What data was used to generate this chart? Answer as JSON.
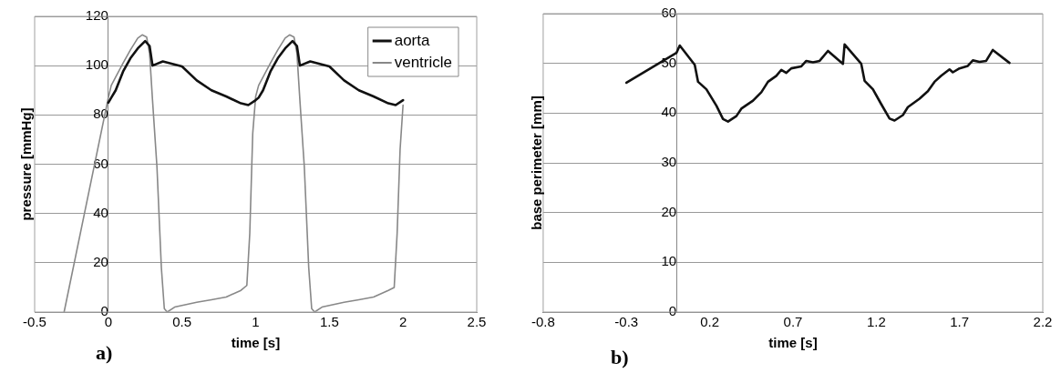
{
  "chart_data": [
    {
      "type": "line",
      "xlabel": "time [s]",
      "ylabel": "pressure [mmHg]",
      "annotations": [
        "a)"
      ],
      "xlim": [
        -0.5,
        2.5
      ],
      "xticks": [
        -0.5,
        0,
        0.5,
        1,
        1.5,
        2,
        2.5
      ],
      "ylim": [
        0,
        120
      ],
      "yticks": [
        0,
        20,
        40,
        60,
        80,
        100,
        120
      ],
      "grid": "y",
      "legend": "top right",
      "marker": "none",
      "line_style": "solid",
      "series": [
        {
          "name": "aorta",
          "color": "#111111",
          "x": [
            0,
            0.02,
            0.05,
            0.1,
            0.15,
            0.2,
            0.25,
            0.28,
            0.3,
            0.37,
            0.5,
            0.6,
            0.7,
            0.8,
            0.9,
            0.95,
            1.0,
            1.02,
            1.05,
            1.1,
            1.15,
            1.2,
            1.25,
            1.28,
            1.3,
            1.37,
            1.5,
            1.6,
            1.7,
            1.8,
            1.9,
            1.95,
            2.0
          ],
          "values": [
            85,
            87,
            90,
            97.6,
            103,
            107,
            110,
            108,
            100,
            101.7,
            99.7,
            94,
            90,
            87.5,
            84.7,
            84,
            86,
            87,
            90,
            97.6,
            103,
            107,
            110,
            108,
            100,
            101.7,
            99.7,
            94,
            90,
            87.5,
            84.7,
            84,
            86
          ]
        },
        {
          "name": "ventricle",
          "color": "#888888",
          "x": [
            -0.3,
            0,
            0.02,
            0.1,
            0.15,
            0.2,
            0.23,
            0.26,
            0.28,
            0.3,
            0.33,
            0.36,
            0.38,
            0.4,
            0.45,
            0.5,
            0.6,
            0.7,
            0.8,
            0.9,
            0.94,
            0.96,
            0.98,
            1.0,
            1.02,
            1.1,
            1.15,
            1.2,
            1.23,
            1.26,
            1.28,
            1.3,
            1.33,
            1.36,
            1.38,
            1.4,
            1.45,
            1.5,
            1.6,
            1.7,
            1.8,
            1.9,
            1.94,
            1.96,
            1.98,
            2.0
          ],
          "values": [
            0,
            87,
            92,
            101,
            106.4,
            111.2,
            112.5,
            111.6,
            105,
            86,
            59,
            18,
            1.4,
            0,
            2,
            2.7,
            4,
            5,
            6.1,
            8.8,
            10.8,
            32,
            72.5,
            87.5,
            92,
            101,
            106.4,
            111.2,
            112.5,
            111.6,
            105,
            86,
            59,
            18,
            1.4,
            0,
            2,
            2.7,
            4,
            5,
            6.1,
            8.8,
            10,
            32,
            66,
            84
          ]
        }
      ]
    },
    {
      "type": "line",
      "xlabel": "time [s]",
      "ylabel": "base perimeter [mm]",
      "annotations": [
        "b)"
      ],
      "xlim": [
        -0.8,
        2.2
      ],
      "xticks": [
        -0.8,
        -0.3,
        0.2,
        0.7,
        1.2,
        1.7,
        2.2
      ],
      "ylim": [
        0,
        60
      ],
      "yticks": [
        0,
        10,
        20,
        30,
        40,
        50,
        60
      ],
      "grid": "y",
      "marker": "none",
      "line_style": "solid",
      "series": [
        {
          "color": "#111111",
          "x": [
            -0.3,
            0,
            0.02,
            0.11,
            0.13,
            0.18,
            0.24,
            0.28,
            0.31,
            0.36,
            0.39,
            0.46,
            0.51,
            0.55,
            0.6,
            0.63,
            0.66,
            0.69,
            0.75,
            0.78,
            0.82,
            0.86,
            0.91,
            1.0,
            1.01,
            1.11,
            1.13,
            1.18,
            1.23,
            1.28,
            1.31,
            1.36,
            1.39,
            1.46,
            1.51,
            1.55,
            1.59,
            1.64,
            1.66,
            1.7,
            1.75,
            1.78,
            1.82,
            1.86,
            1.9,
            2.0
          ],
          "values": [
            46.1,
            52.1,
            53.6,
            49.7,
            46.3,
            44.8,
            41.5,
            38.8,
            38.3,
            39.4,
            40.9,
            42.5,
            44.2,
            46.3,
            47.5,
            48.7,
            48.1,
            49,
            49.4,
            50.5,
            50.2,
            50.5,
            52.5,
            49.9,
            53.8,
            49.9,
            46.5,
            44.8,
            41.8,
            38.9,
            38.5,
            39.6,
            41.2,
            42.9,
            44.4,
            46.3,
            47.5,
            48.8,
            48.2,
            49,
            49.5,
            50.6,
            50.3,
            50.5,
            52.7,
            50.1
          ]
        }
      ]
    }
  ]
}
